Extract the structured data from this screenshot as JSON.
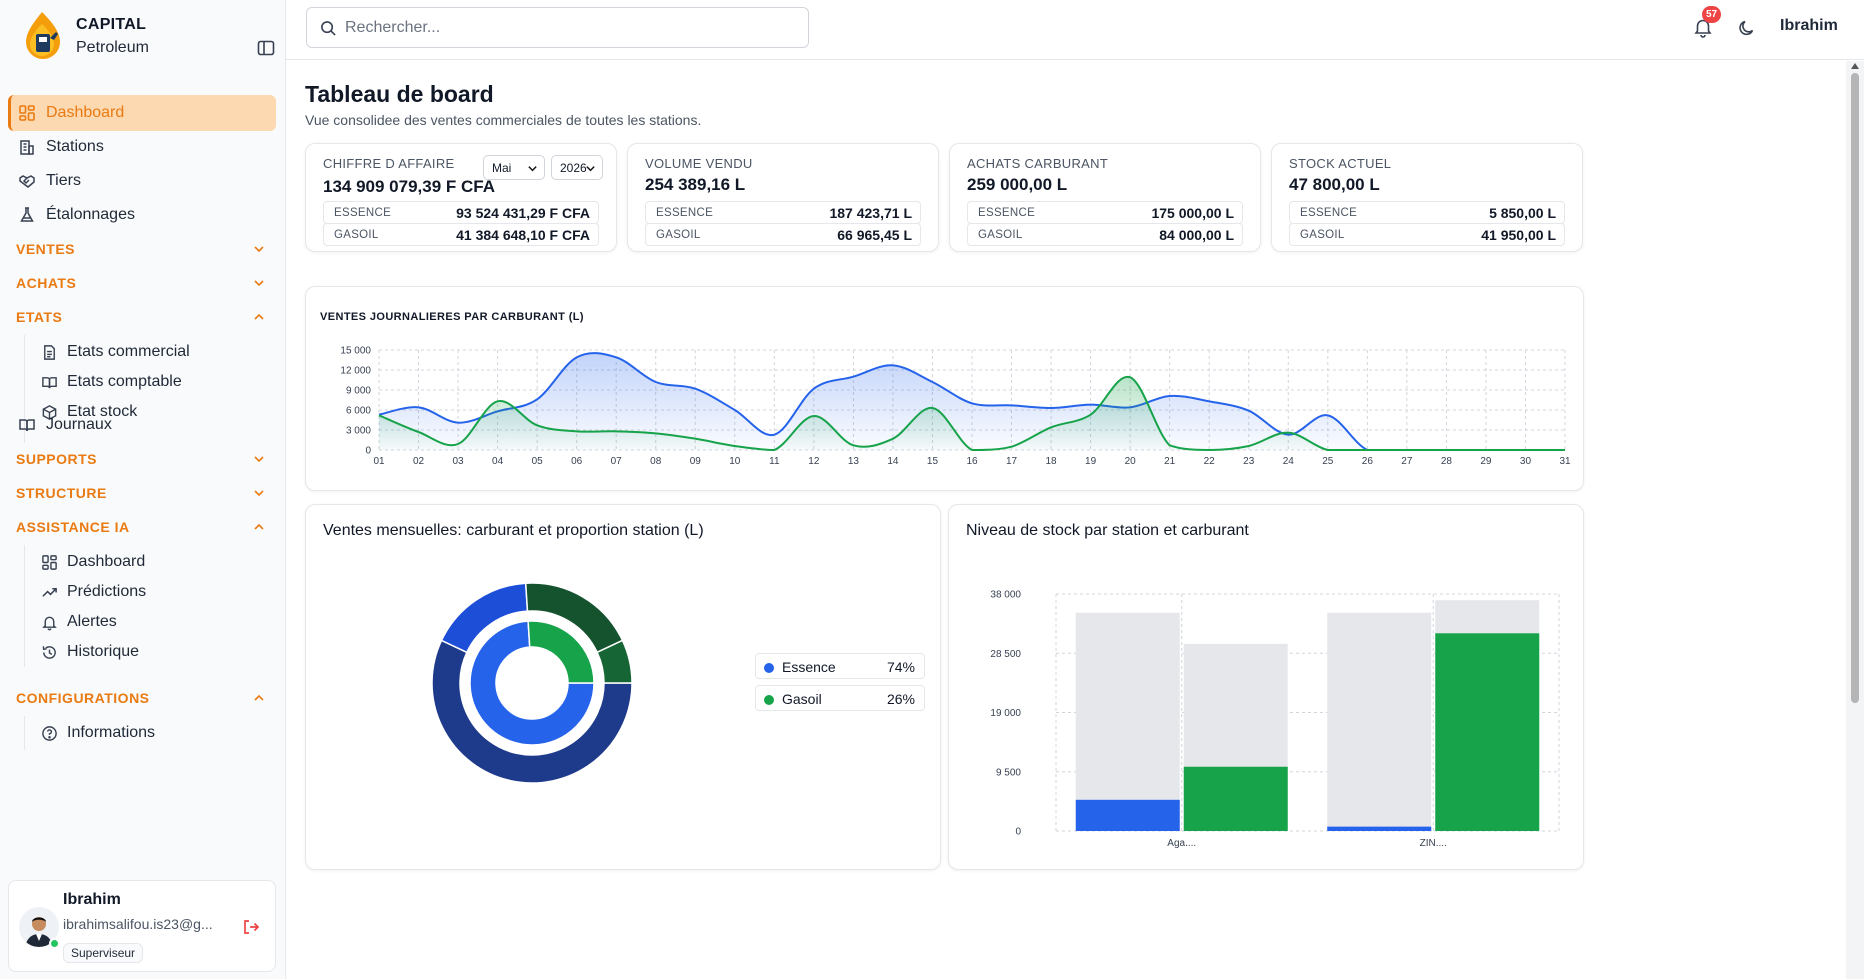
{
  "brand": {
    "name": "CAPITAL",
    "sub": "Petroleum"
  },
  "sidebar": {
    "dashboard": "Dashboard",
    "stations": "Stations",
    "tiers": "Tiers",
    "etalonnages": "Étalonnages",
    "ventes": "VENTES",
    "achats": "ACHATS",
    "etats": "ETATS",
    "etats_commercial": "Etats commercial",
    "etats_comptable": "Etats comptable",
    "etat_stock": "Etat stock",
    "journaux": "Journaux",
    "supports": "SUPPORTS",
    "structure": "STRUCTURE",
    "assistance": "ASSISTANCE IA",
    "ia_dashboard": "Dashboard",
    "ia_predictions": "Prédictions",
    "ia_alertes": "Alertes",
    "ia_historique": "Historique",
    "configurations": "CONFIGURATIONS",
    "informations": "Informations"
  },
  "user": {
    "name": "Ibrahim",
    "email": "ibrahimsalifou.is23@g...",
    "role": "Superviseur"
  },
  "header": {
    "search_placeholder": "Rechercher...",
    "notif_count": "57",
    "user": "Ibrahim"
  },
  "page": {
    "title": "Tableau de board",
    "subtitle": "Vue consolidee des ventes commerciales de toutes les stations."
  },
  "kpis": [
    {
      "label": "CHIFFRE D AFFAIRE",
      "value": "134 909 079,39 F CFA",
      "rows": [
        {
          "l": "ESSENCE",
          "v": "93 524 431,29 F CFA"
        },
        {
          "l": "GASOIL",
          "v": "41 384 648,10 F CFA"
        }
      ]
    },
    {
      "label": "VOLUME VENDU",
      "value": "254 389,16 L",
      "rows": [
        {
          "l": "ESSENCE",
          "v": "187 423,71 L"
        },
        {
          "l": "GASOIL",
          "v": "66 965,45 L"
        }
      ]
    },
    {
      "label": "ACHATS CARBURANT",
      "value": "259 000,00 L",
      "rows": [
        {
          "l": "ESSENCE",
          "v": "175 000,00 L"
        },
        {
          "l": "GASOIL",
          "v": "84 000,00 L"
        }
      ]
    },
    {
      "label": "STOCK ACTUEL",
      "value": "47 800,00 L",
      "rows": [
        {
          "l": "ESSENCE",
          "v": "5 850,00 L"
        },
        {
          "l": "GASOIL",
          "v": "41 950,00 L"
        }
      ]
    }
  ],
  "filters": {
    "month": "Mai",
    "year": "2026"
  },
  "panels": {
    "line_title": "VENTES JOURNALIERES PAR CARBURANT (L)",
    "donut_title": "Ventes mensuelles: carburant et proportion station (L)",
    "stock_title": "Niveau de stock par station et carburant"
  },
  "colors": {
    "essence": "#2563eb",
    "gasoil": "#16a34a",
    "essence_dark": "#1e3a8a",
    "gasoil_dark": "#14532d",
    "accent": "#ea7a12",
    "capacity": "#e5e7eb"
  },
  "chart_data": [
    {
      "type": "line",
      "title": "VENTES JOURNALIERES PAR CARBURANT (L)",
      "categories": [
        "01",
        "02",
        "03",
        "04",
        "05",
        "06",
        "07",
        "08",
        "09",
        "10",
        "11",
        "12",
        "13",
        "14",
        "15",
        "16",
        "17",
        "18",
        "19",
        "20",
        "21",
        "22",
        "23",
        "24",
        "25",
        "26",
        "27",
        "28",
        "29",
        "30",
        "31"
      ],
      "ylim": [
        0,
        15000
      ],
      "yticks": [
        "15 000",
        "12 000",
        "9 000",
        "6 000",
        "3 000",
        "0"
      ],
      "yticks_values": [
        15000,
        12000,
        9000,
        6000,
        3000,
        0
      ],
      "grid": true,
      "series": [
        {
          "values": [
            5300,
            6400,
            4100,
            5800,
            7600,
            13900,
            13900,
            10200,
            9200,
            6000,
            2300,
            9200,
            11000,
            12700,
            10200,
            7000,
            6700,
            6300,
            6800,
            6400,
            8100,
            7300,
            5900,
            2300,
            5200,
            0,
            0,
            0,
            0,
            0,
            0
          ]
        },
        {
          "values": [
            5200,
            2700,
            900,
            7300,
            3700,
            2800,
            2800,
            2500,
            1700,
            600,
            0,
            5100,
            700,
            1700,
            6300,
            0,
            500,
            3400,
            5300,
            10900,
            700,
            0,
            600,
            2600,
            0,
            0,
            0,
            0,
            0,
            0,
            0
          ]
        }
      ]
    },
    {
      "type": "pie",
      "title": "Ventes mensuelles: carburant et proportion station (L)",
      "series": [
        {
          "name": "Essence",
          "value": 74
        },
        {
          "name": "Gasoil",
          "value": 26
        }
      ],
      "outer_ring": [
        {
          "fuel": "Essence",
          "share": 0.57
        },
        {
          "fuel": "Essence",
          "share": 0.17
        },
        {
          "fuel": "Gasoil",
          "share": 0.19
        },
        {
          "fuel": "Gasoil",
          "share": 0.07
        }
      ]
    },
    {
      "type": "bar",
      "title": "Niveau de stock par station et carburant",
      "categories": [
        "Aga....",
        "ZIN...."
      ],
      "ylim": [
        0,
        38000
      ],
      "yticks": [
        "38 000",
        "28 500",
        "19 000",
        "9 500",
        "0"
      ],
      "yticks_values": [
        38000,
        28500,
        19000,
        9500,
        0
      ],
      "grid": true,
      "bars": [
        {
          "station": "Aga....",
          "fuel": "Essence",
          "capacity": 35000,
          "stock": 5000
        },
        {
          "station": "Aga....",
          "fuel": "Gasoil",
          "capacity": 30000,
          "stock": 10300
        },
        {
          "station": "ZIN....",
          "fuel": "Essence",
          "capacity": 35000,
          "stock": 700
        },
        {
          "station": "ZIN....",
          "fuel": "Gasoil",
          "capacity": 37000,
          "stock": 31700
        }
      ]
    }
  ]
}
